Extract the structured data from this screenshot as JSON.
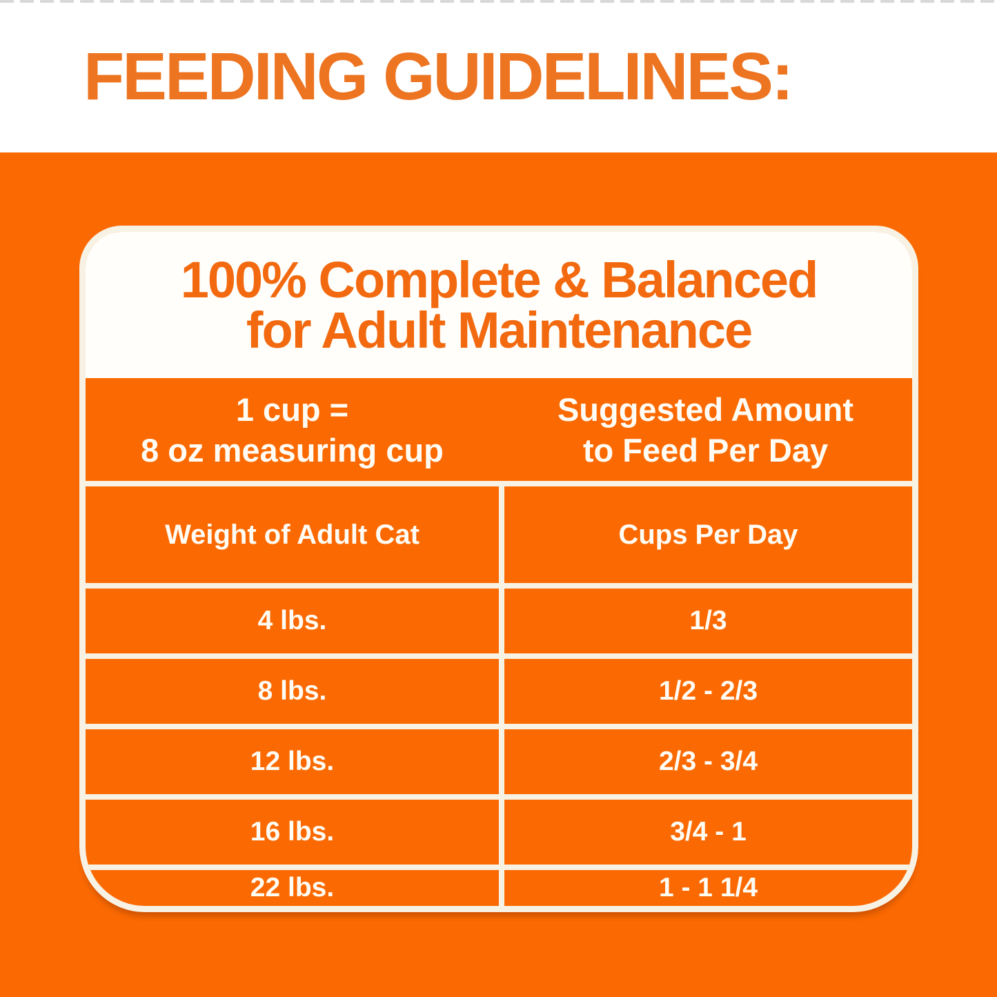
{
  "header": {
    "title": "FEEDING GUIDELINES:"
  },
  "card": {
    "heading": {
      "line1": "100% Complete & Balanced",
      "line2": "for Adult Maintenance"
    },
    "intro": {
      "left_line1": "1 cup =",
      "left_line2": "8 oz measuring cup",
      "right_line1": "Suggested Amount",
      "right_line2": "to Feed Per Day"
    },
    "columns": {
      "weight": "Weight of Adult Cat",
      "cups": "Cups Per Day"
    },
    "rows": [
      {
        "weight": "4 lbs.",
        "cups": "1/3"
      },
      {
        "weight": "8 lbs.",
        "cups": "1/2 - 2/3"
      },
      {
        "weight": "12 lbs.",
        "cups": "2/3 - 3/4"
      },
      {
        "weight": "16 lbs.",
        "cups": "3/4 - 1"
      },
      {
        "weight": "22 lbs.",
        "cups": "1 - 1 1/4"
      }
    ]
  },
  "colors": {
    "page_orange": "#FB6A02",
    "title_orange": "#ED7421",
    "heading_orange": "#F2690F",
    "line_cream": "#F8F2E4",
    "text_white": "#FFFCF5"
  }
}
